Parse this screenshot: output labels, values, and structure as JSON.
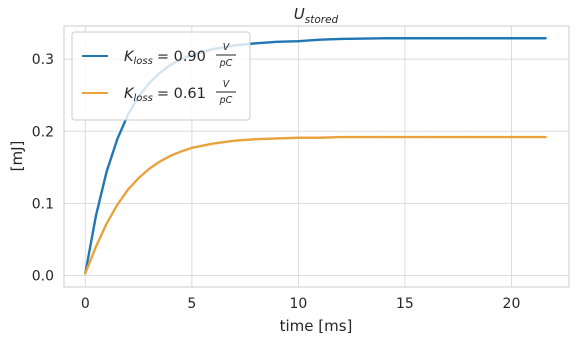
{
  "chart_data": {
    "type": "line",
    "title_main": "U",
    "title_sub": "stored",
    "xlabel": "time [ms]",
    "ylabel": "[mJ]",
    "xlim": [
      -1.0,
      22.7
    ],
    "ylim": [
      -0.016,
      0.346
    ],
    "xticks": [
      0,
      5,
      10,
      15,
      20
    ],
    "xtick_labels": [
      "0",
      "5",
      "10",
      "15",
      "20"
    ],
    "yticks": [
      0.0,
      0.1,
      0.2,
      0.3
    ],
    "ytick_labels": [
      "0.0",
      "0.1",
      "0.2",
      "0.3"
    ],
    "grid": true,
    "legend_position": "upper-left",
    "series": [
      {
        "legend_var": "K",
        "legend_sub": "loss",
        "legend_value": "= 0.90",
        "legend_unit_num": "V",
        "legend_unit_den": "pC",
        "color": "#1f77b4",
        "x": [
          0,
          0.5,
          1,
          1.5,
          2,
          2.5,
          3,
          3.5,
          4,
          4.5,
          5,
          6,
          7,
          8,
          9,
          10,
          11,
          12,
          14,
          16,
          18,
          20,
          21.6
        ],
        "y": [
          0.003,
          0.083,
          0.144,
          0.189,
          0.223,
          0.248,
          0.267,
          0.281,
          0.292,
          0.3,
          0.306,
          0.314,
          0.319,
          0.322,
          0.324,
          0.325,
          0.327,
          0.328,
          0.329,
          0.329,
          0.329,
          0.329,
          0.329
        ]
      },
      {
        "legend_var": "K",
        "legend_sub": "loss",
        "legend_value": "= 0.61",
        "legend_unit_num": "V",
        "legend_unit_den": "pC",
        "color": "#e8a33d",
        "x": [
          0,
          0.5,
          1,
          1.5,
          2,
          2.5,
          3,
          3.5,
          4,
          4.5,
          5,
          6,
          7,
          8,
          9,
          10,
          11,
          12,
          14,
          16,
          18,
          20,
          21.6
        ],
        "y": [
          0.003,
          0.04,
          0.072,
          0.098,
          0.119,
          0.135,
          0.148,
          0.158,
          0.166,
          0.172,
          0.177,
          0.183,
          0.187,
          0.189,
          0.19,
          0.191,
          0.191,
          0.192,
          0.192,
          0.192,
          0.192,
          0.192,
          0.192
        ]
      }
    ]
  },
  "colors": {
    "grid": "#dcdcdc",
    "axes_edge": "#cccccc",
    "text": "#262626"
  }
}
